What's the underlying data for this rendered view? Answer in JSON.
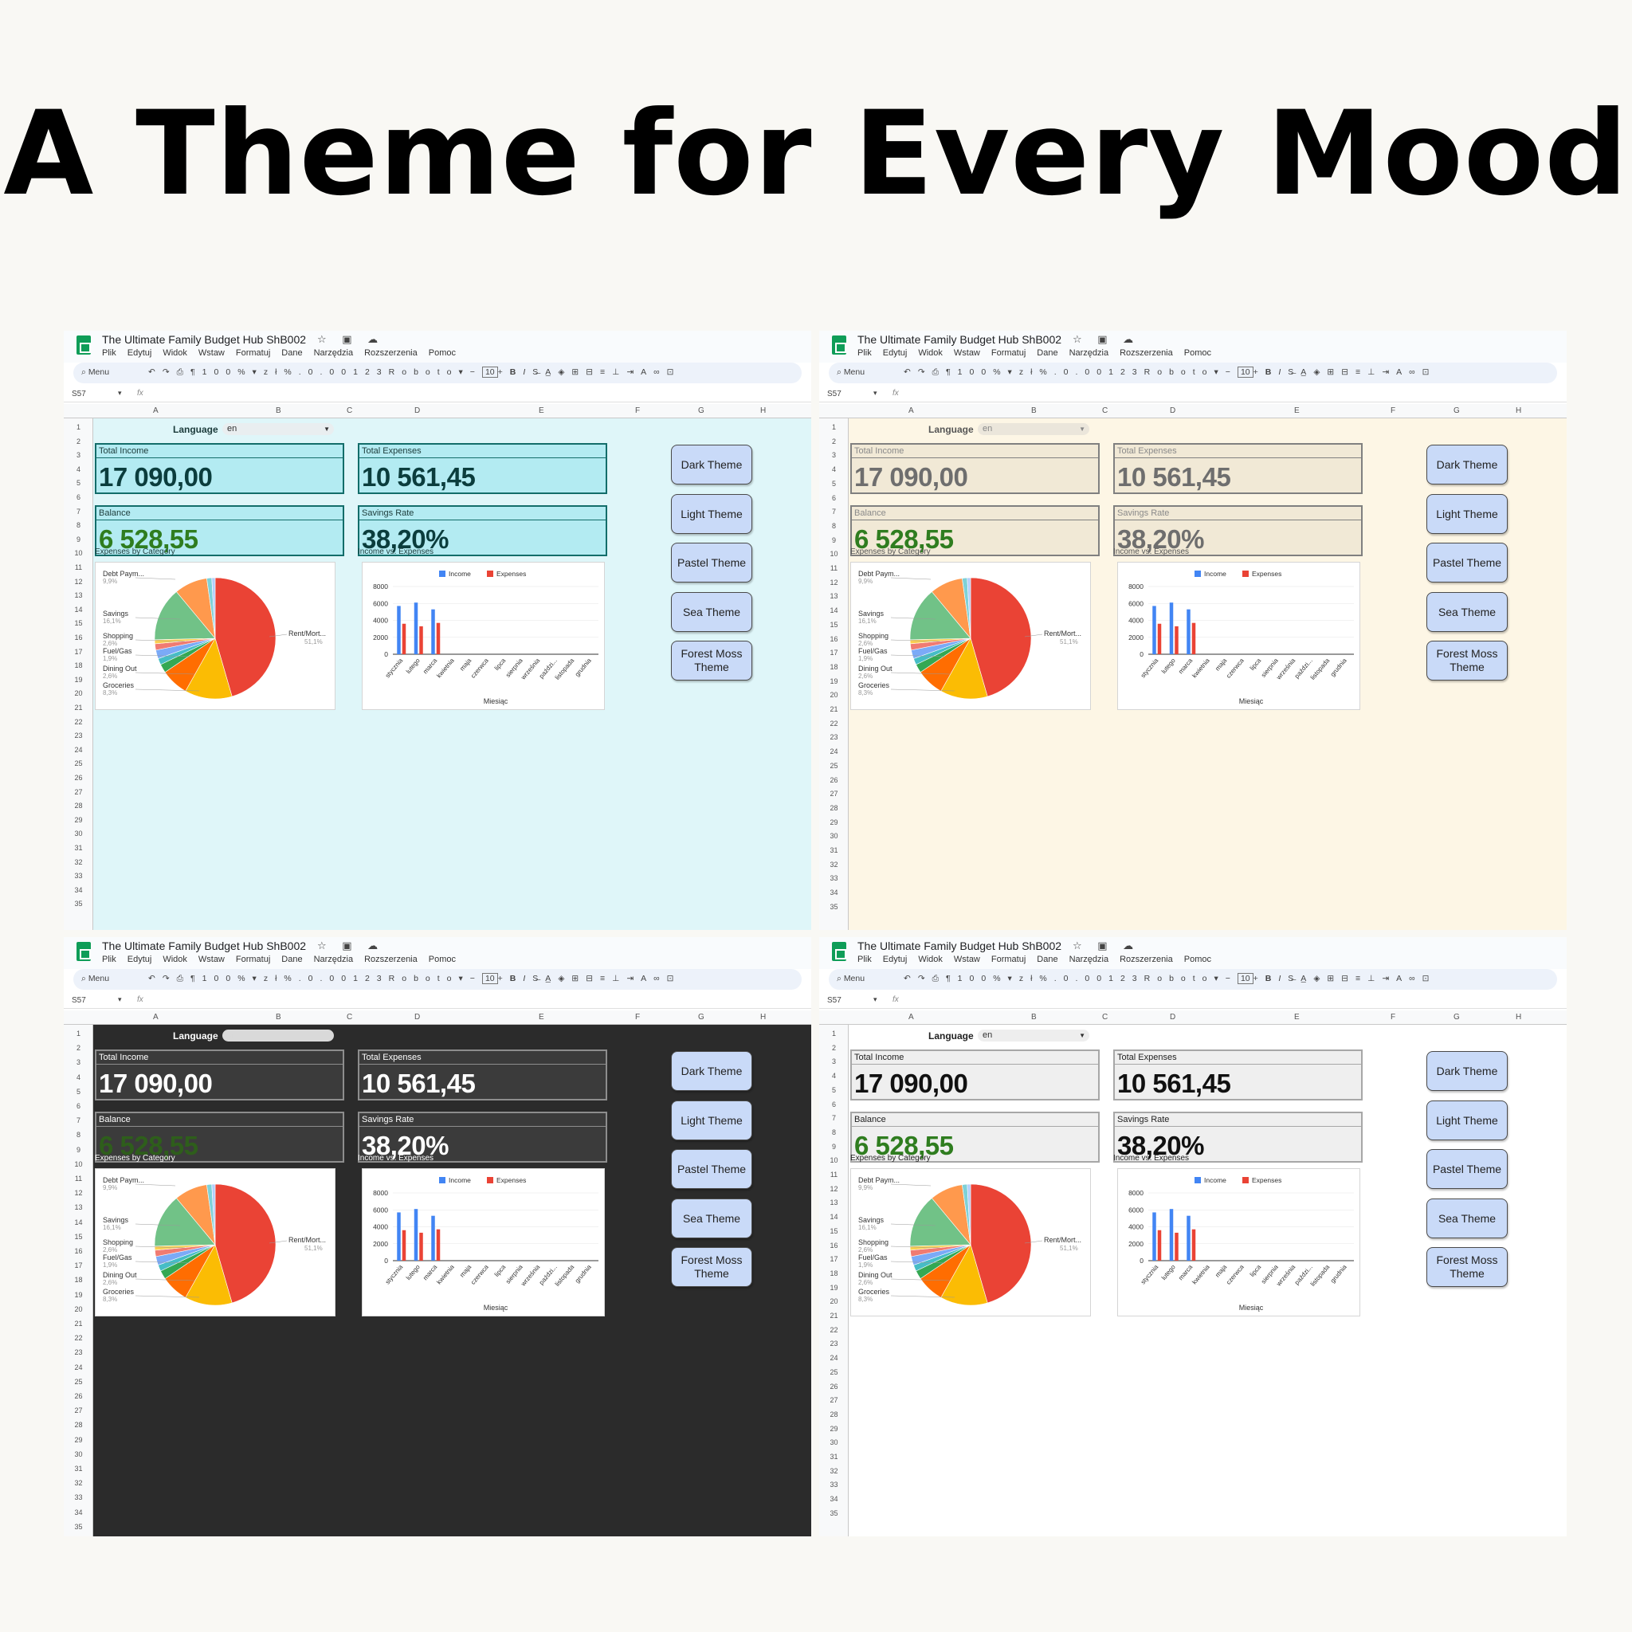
{
  "headline": "A Theme for Every Mood",
  "app": {
    "doc_title": "The Ultimate Family Budget Hub ShB002",
    "menus": [
      "Plik",
      "Edytuj",
      "Widok",
      "Wstaw",
      "Formatuj",
      "Dane",
      "Narzędzia",
      "Rozszerzenia",
      "Pomoc"
    ],
    "toolbar": {
      "search": "Menu",
      "zoom": "100%",
      "currency": "zł",
      "percent": "%",
      "dec_less": ".0",
      "dec_more": ".00",
      "number_format": "123",
      "font": "Roboto",
      "font_size": "10",
      "bold": "B",
      "italic": "I"
    },
    "cell_ref": "S57",
    "fx": "fx",
    "columns": [
      "A",
      "B",
      "C",
      "D",
      "E",
      "F",
      "G",
      "H"
    ],
    "rows": [
      "1",
      "2",
      "3",
      "4",
      "5",
      "6",
      "7",
      "8",
      "9",
      "10",
      "11",
      "12",
      "13",
      "14",
      "15",
      "16",
      "17",
      "18",
      "19",
      "20",
      "21",
      "22",
      "23",
      "24",
      "25",
      "26",
      "27",
      "28",
      "29",
      "30",
      "31",
      "32",
      "33",
      "34",
      "35"
    ]
  },
  "dashboard": {
    "language_label": "Language",
    "language_value": "en",
    "kpis": [
      {
        "label": "Total Income",
        "value": "17 090,00"
      },
      {
        "label": "Total Expenses",
        "value": "10 561,45"
      },
      {
        "label": "Balance",
        "value": "6 528,55"
      },
      {
        "label": "Savings Rate",
        "value": "38,20%"
      }
    ],
    "pie_title": "Expenses by Category",
    "bar_title": "Income vs. Expenses",
    "theme_buttons": [
      "Dark Theme",
      "Light Theme",
      "Pastel Theme",
      "Sea Theme",
      "Forest Moss Theme"
    ]
  },
  "themes": [
    {
      "sheet_bg": "#dff6f9",
      "kpi_bg": "#b3ebf2",
      "kpi_border": "#136d6a",
      "kpi_label": "#1c3b3a",
      "value": "#0b3d3d",
      "balance": "#2f7d1f",
      "text": "#1b3a3a",
      "lang_bg": "#e9eef0",
      "lang_text": "#333333"
    },
    {
      "sheet_bg": "#fdf6e5",
      "kpi_bg": "#f1e9d6",
      "kpi_border": "#808080",
      "kpi_label": "#8a8a8a",
      "value": "#6e6e6e",
      "balance": "#2f7d1f",
      "text": "#555555",
      "lang_bg": "#ebe6db",
      "lang_text": "#888888"
    },
    {
      "sheet_bg": "#2b2b2b",
      "kpi_bg": "#3b3b3b",
      "kpi_border": "#8d8d8d",
      "kpi_label": "#ffffff",
      "value": "#ffffff",
      "balance": "#2e5e1b",
      "text": "#ffffff",
      "lang_bg": "#d9d9d9",
      "lang_text": "#d9d9d9"
    },
    {
      "sheet_bg": "#ffffff",
      "kpi_bg": "#efefef",
      "kpi_border": "#a7a7a7",
      "kpi_label": "#222222",
      "value": "#111111",
      "balance": "#2f7d1f",
      "text": "#222222",
      "lang_bg": "#eeeeee",
      "lang_text": "#333333"
    }
  ],
  "chart_data": [
    {
      "type": "pie",
      "title": "Expenses by Category",
      "slices": [
        {
          "label": "Rent/Mort...",
          "value": 51.1,
          "display": "51,1%",
          "color": "#ea4335"
        },
        {
          "label": "",
          "value": 14.2,
          "display": "",
          "color": "#fbbc04"
        },
        {
          "label": "Groceries",
          "value": 8.3,
          "display": "8,3%",
          "color": "#ff6d01"
        },
        {
          "label": "Dining Out",
          "value": 2.6,
          "display": "2,6%",
          "color": "#34a853"
        },
        {
          "label": "Fuel/Gas",
          "value": 1.9,
          "display": "1,9%",
          "color": "#46bdc6"
        },
        {
          "label": "Shopping",
          "value": 2.6,
          "display": "2,6%",
          "color": "#7baaf7"
        },
        {
          "label": "",
          "value": 1.9,
          "display": "",
          "color": "#f07b72"
        },
        {
          "label": "",
          "value": 1.2,
          "display": "",
          "color": "#fcd04f"
        },
        {
          "label": "Savings",
          "value": 16.1,
          "display": "16,1%",
          "color": "#71c287"
        },
        {
          "label": "Debt Paym...",
          "value": 9.9,
          "display": "9,9%",
          "color": "#ff994d"
        },
        {
          "label": "",
          "value": 1.5,
          "display": "",
          "color": "#7ed1d7"
        },
        {
          "label": "",
          "value": 1.0,
          "display": "",
          "color": "#b3cefb"
        }
      ]
    },
    {
      "type": "bar",
      "title": "Income vs. Expenses",
      "xlabel": "Miesiąc",
      "categories": [
        "stycznia",
        "lutego",
        "marca",
        "kwietnia",
        "maja",
        "czerwca",
        "lipca",
        "sierpnia",
        "września",
        "paździ...",
        "listopada",
        "grudnia"
      ],
      "series": [
        {
          "name": "Income",
          "color": "#4285f4",
          "values": [
            5700,
            6100,
            5300,
            0,
            0,
            0,
            0,
            0,
            0,
            0,
            0,
            0
          ]
        },
        {
          "name": "Expenses",
          "color": "#ea4335",
          "values": [
            3600,
            3300,
            3700,
            0,
            0,
            0,
            0,
            0,
            0,
            0,
            0,
            0
          ]
        }
      ],
      "yticks": [
        "0",
        "2000",
        "4000",
        "6000",
        "8000"
      ],
      "ylim": [
        0,
        8000
      ],
      "legend": "top"
    }
  ]
}
